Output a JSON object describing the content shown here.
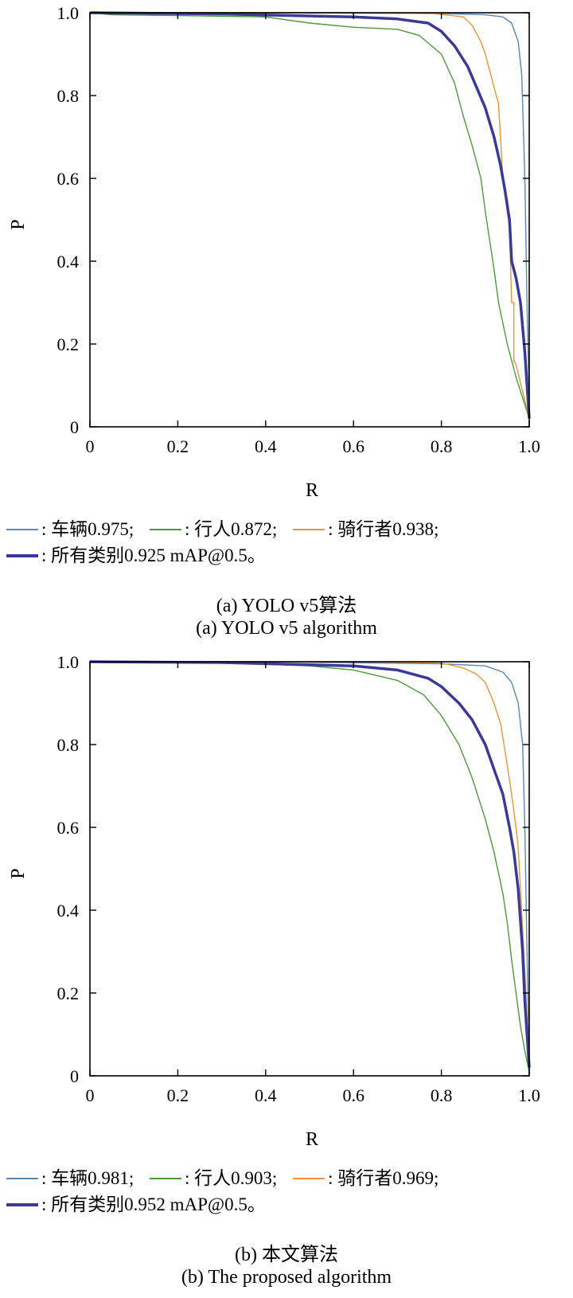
{
  "colors": {
    "car": "#5b86b5",
    "pedestrian": "#4c9a3a",
    "rider": "#e8943a",
    "all": "#3b3a96"
  },
  "chart_data": [
    {
      "type": "line",
      "xlabel": "R",
      "ylabel": "P",
      "xlim": [
        0,
        1
      ],
      "ylim": [
        0,
        1
      ],
      "x_ticks": [
        "0",
        "0.2",
        "0.4",
        "0.6",
        "0.8",
        "1.0"
      ],
      "y_ticks": [
        "0",
        "0.2",
        "0.4",
        "0.6",
        "0.8",
        "1.0"
      ],
      "grid": false,
      "legend_position": "below",
      "legend": {
        "car": ": 车辆0.975;",
        "pedestrian": ": 行人0.872;",
        "rider": ": 骑行者0.938;",
        "all": ": 所有类别0.925 mAP@0.5。"
      },
      "caption_cn": "(a) YOLO v5算法",
      "caption_en": "(a) YOLO v5 algorithm",
      "series": [
        {
          "key": "car",
          "name": "车辆",
          "ap": 0.975,
          "width": 1.4,
          "x": [
            0,
            0.4,
            0.8,
            0.9,
            0.94,
            0.96,
            0.975,
            0.983,
            0.99,
            0.995,
            1.0
          ],
          "y": [
            1.0,
            1.0,
            0.998,
            0.995,
            0.99,
            0.975,
            0.93,
            0.85,
            0.6,
            0.3,
            0.05
          ]
        },
        {
          "key": "pedestrian",
          "name": "行人",
          "ap": 0.872,
          "width": 1.4,
          "x": [
            0,
            0.05,
            0.2,
            0.4,
            0.5,
            0.6,
            0.7,
            0.75,
            0.8,
            0.83,
            0.85,
            0.87,
            0.89,
            0.9,
            0.91,
            0.92,
            0.93,
            0.94,
            0.95,
            0.97,
            1.0
          ],
          "y": [
            1.0,
            0.995,
            0.993,
            0.99,
            0.975,
            0.965,
            0.96,
            0.945,
            0.9,
            0.83,
            0.75,
            0.68,
            0.6,
            0.52,
            0.45,
            0.38,
            0.3,
            0.25,
            0.2,
            0.12,
            0.02
          ]
        },
        {
          "key": "rider",
          "name": "骑行者",
          "ap": 0.938,
          "width": 1.4,
          "x": [
            0,
            0.6,
            0.78,
            0.85,
            0.87,
            0.89,
            0.9,
            0.91,
            0.92,
            0.93,
            0.94,
            0.95,
            0.955,
            0.96,
            0.965,
            0.965,
            0.97,
            1.0
          ],
          "y": [
            1.0,
            1.0,
            0.998,
            0.99,
            0.97,
            0.93,
            0.9,
            0.86,
            0.82,
            0.78,
            0.6,
            0.52,
            0.48,
            0.3,
            0.3,
            0.16,
            0.15,
            0.02
          ]
        },
        {
          "key": "all",
          "name": "所有类别",
          "ap": 0.925,
          "width": 3.5,
          "x": [
            0,
            0.3,
            0.6,
            0.7,
            0.77,
            0.8,
            0.83,
            0.86,
            0.88,
            0.9,
            0.92,
            0.935,
            0.945,
            0.955,
            0.96,
            0.97,
            0.98,
            0.99,
            1.0
          ],
          "y": [
            1.0,
            0.997,
            0.99,
            0.985,
            0.975,
            0.955,
            0.92,
            0.87,
            0.82,
            0.77,
            0.7,
            0.63,
            0.57,
            0.5,
            0.4,
            0.36,
            0.3,
            0.18,
            0.02
          ]
        }
      ]
    },
    {
      "type": "line",
      "xlabel": "R",
      "ylabel": "P",
      "xlim": [
        0,
        1
      ],
      "ylim": [
        0,
        1
      ],
      "x_ticks": [
        "0",
        "0.2",
        "0.4",
        "0.6",
        "0.8",
        "1.0"
      ],
      "y_ticks": [
        "0",
        "0.2",
        "0.4",
        "0.6",
        "0.8",
        "1.0"
      ],
      "grid": false,
      "legend_position": "below",
      "legend": {
        "car": ": 车辆0.981;",
        "pedestrian": ": 行人0.903;",
        "rider": ": 骑行者0.969;",
        "all": ": 所有类别0.952 mAP@0.5。"
      },
      "caption_cn": "(b) 本文算法",
      "caption_en": "(b) The proposed algorithm",
      "series": [
        {
          "key": "car",
          "name": "车辆",
          "ap": 0.981,
          "width": 1.4,
          "x": [
            0,
            0.4,
            0.8,
            0.9,
            0.94,
            0.96,
            0.975,
            0.985,
            0.99,
            0.995,
            1.0
          ],
          "y": [
            1.0,
            1.0,
            0.995,
            0.99,
            0.975,
            0.95,
            0.9,
            0.8,
            0.6,
            0.3,
            0.02
          ]
        },
        {
          "key": "pedestrian",
          "name": "行人",
          "ap": 0.903,
          "width": 1.4,
          "x": [
            0,
            0.3,
            0.5,
            0.6,
            0.7,
            0.76,
            0.8,
            0.84,
            0.87,
            0.9,
            0.92,
            0.94,
            0.95,
            0.96,
            0.97,
            0.98,
            0.99,
            1.0
          ],
          "y": [
            1.0,
            0.998,
            0.99,
            0.98,
            0.955,
            0.92,
            0.87,
            0.8,
            0.72,
            0.62,
            0.54,
            0.44,
            0.37,
            0.28,
            0.2,
            0.12,
            0.06,
            0.01
          ]
        },
        {
          "key": "rider",
          "name": "骑行者",
          "ap": 0.969,
          "width": 1.4,
          "x": [
            0,
            0.6,
            0.8,
            0.85,
            0.88,
            0.9,
            0.92,
            0.935,
            0.95,
            0.96,
            0.97,
            0.975,
            0.98,
            0.99,
            1.0
          ],
          "y": [
            1.0,
            1.0,
            0.997,
            0.985,
            0.97,
            0.95,
            0.9,
            0.85,
            0.75,
            0.68,
            0.6,
            0.55,
            0.45,
            0.25,
            0.02
          ]
        },
        {
          "key": "all",
          "name": "所有类别",
          "ap": 0.952,
          "width": 3.5,
          "x": [
            0,
            0.3,
            0.6,
            0.7,
            0.77,
            0.8,
            0.84,
            0.87,
            0.9,
            0.92,
            0.94,
            0.955,
            0.965,
            0.975,
            0.985,
            0.99,
            1.0
          ],
          "y": [
            1.0,
            0.998,
            0.99,
            0.98,
            0.96,
            0.94,
            0.9,
            0.86,
            0.8,
            0.74,
            0.68,
            0.6,
            0.54,
            0.45,
            0.3,
            0.18,
            0.02
          ]
        }
      ]
    }
  ]
}
